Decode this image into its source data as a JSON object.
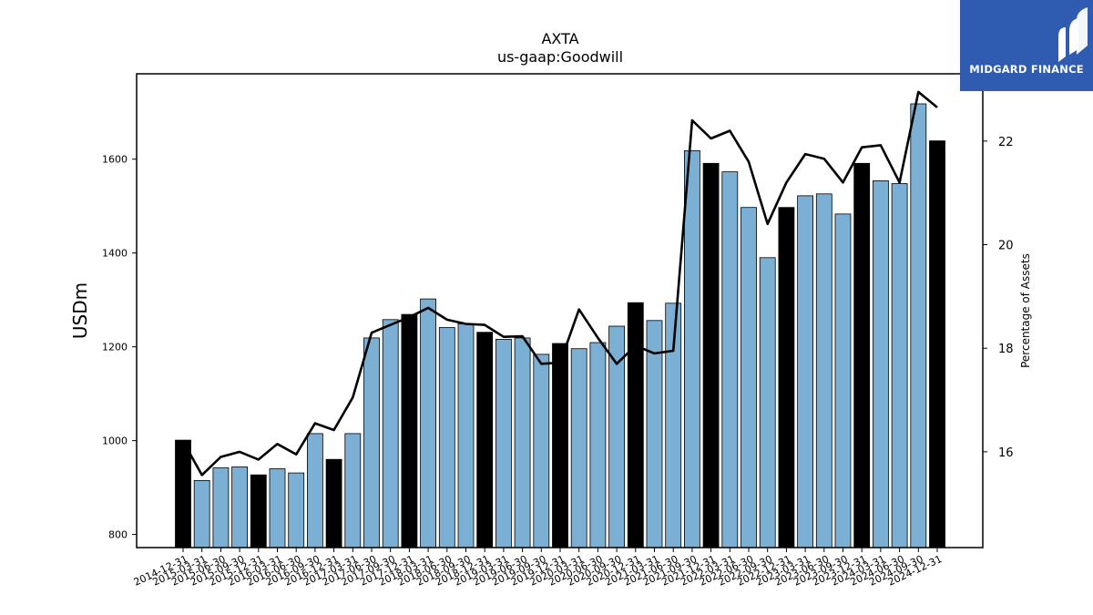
{
  "chart_data": {
    "type": "bar",
    "title": "AXTA",
    "subtitle": "us-gaap:Goodwill",
    "ylabel": "USDm",
    "y2label": "Percentage of Assets",
    "ylim": [
      772,
      1782
    ],
    "y2lim": [
      14.15,
      23.3
    ],
    "yticks": [
      800,
      1000,
      1200,
      1400,
      1600
    ],
    "y2ticks": [
      16,
      18,
      20,
      22
    ],
    "grid": false,
    "categories": [
      "2014-12-31",
      "2015-03-31",
      "2015-06-30",
      "2015-09-30",
      "2015-12-31",
      "2016-03-31",
      "2016-06-30",
      "2016-09-30",
      "2016-12-31",
      "2017-03-31",
      "2017-06-30",
      "2017-09-30",
      "2017-12-31",
      "2018-03-31",
      "2018-06-30",
      "2018-09-30",
      "2018-12-31",
      "2019-03-31",
      "2019-06-30",
      "2019-09-30",
      "2019-12-31",
      "2020-03-31",
      "2020-06-30",
      "2020-09-30",
      "2020-12-31",
      "2021-03-31",
      "2021-06-30",
      "2021-09-30",
      "2021-12-31",
      "2022-03-31",
      "2022-06-30",
      "2022-09-30",
      "2022-12-31",
      "2023-03-31",
      "2023-06-30",
      "2023-09-30",
      "2023-12-31",
      "2024-03-31",
      "2024-06-30",
      "2024-09-30",
      "2024-12-31"
    ],
    "series": [
      {
        "kind": "bar",
        "values": [
          1001,
          915,
          942,
          944,
          927,
          940,
          931,
          1015,
          960,
          1015,
          1219,
          1258,
          1269,
          1302,
          1241,
          1249,
          1231,
          1216,
          1219,
          1184,
          1207,
          1196,
          1209,
          1244,
          1294,
          1256,
          1293,
          1618,
          1591,
          1573,
          1497,
          1390,
          1497,
          1522,
          1526,
          1483,
          1591,
          1554,
          1548,
          1718,
          1639
        ],
        "color_default": "#7bafd4",
        "color_year_end": "#000000"
      },
      {
        "kind": "line",
        "axis": "right",
        "values": [
          16.2,
          15.55,
          15.9,
          16.0,
          15.85,
          16.15,
          15.95,
          16.55,
          16.42,
          17.05,
          18.3,
          18.45,
          18.6,
          18.78,
          18.55,
          18.47,
          18.45,
          18.22,
          18.23,
          17.7,
          17.72,
          18.75,
          18.2,
          17.7,
          18.05,
          17.9,
          17.95,
          22.4,
          22.05,
          22.2,
          21.6,
          20.4,
          21.2,
          21.75,
          21.66,
          21.2,
          21.88,
          21.92,
          21.2,
          22.95,
          22.65
        ],
        "color": "#000000"
      }
    ]
  },
  "logo": {
    "text": "MIDGARD FINANCE",
    "bg_color": "#2f5bb0"
  }
}
